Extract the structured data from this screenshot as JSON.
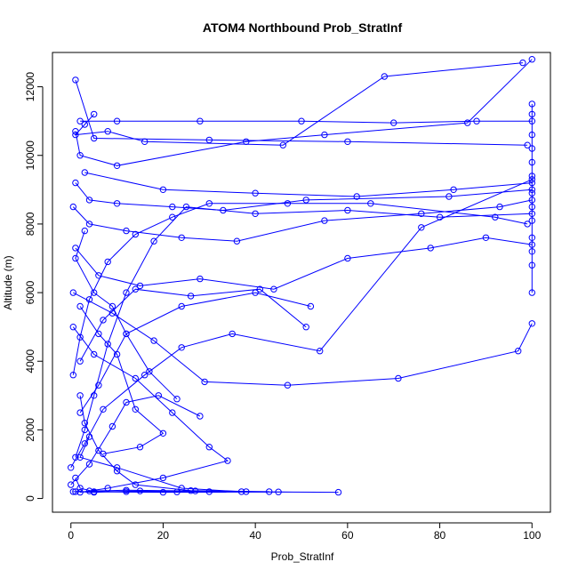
{
  "chart_data": {
    "type": "line",
    "title": "ATOM4 Northbound Prob_StratInf",
    "xlabel": "Prob_StratInf",
    "ylabel": "Altitude (m)",
    "xlim": [
      -4,
      104
    ],
    "ylim": [
      -400,
      13000
    ],
    "x_ticks": [
      0,
      20,
      40,
      60,
      80,
      100
    ],
    "y_ticks": [
      0,
      2000,
      4000,
      6000,
      8000,
      10000,
      12000
    ],
    "series_color": "#0000FF",
    "markers": "open-circle",
    "grid": false,
    "legend": "none",
    "series": [
      {
        "segments": [
          [
            [
              0.5,
              200
            ],
            [
              20,
              180
            ],
            [
              45,
              190
            ],
            [
              58,
              180
            ],
            [
              30,
              200
            ],
            [
              15,
              220
            ],
            [
              5,
              180
            ],
            [
              1,
              200
            ]
          ],
          [
            [
              1,
              1200
            ],
            [
              3,
              2000
            ],
            [
              5,
              3000
            ],
            [
              8,
              4500
            ],
            [
              12,
              6000
            ],
            [
              18,
              7500
            ],
            [
              25,
              8500
            ],
            [
              40,
              8300
            ],
            [
              60,
              8400
            ],
            [
              80,
              8200
            ],
            [
              100,
              8300
            ]
          ],
          [
            [
              2,
              11000
            ],
            [
              10,
              11000
            ],
            [
              28,
              11000
            ],
            [
              50,
              11000
            ],
            [
              70,
              10950
            ],
            [
              88,
              11000
            ],
            [
              100,
              11000
            ]
          ],
          [
            [
              1,
              12200
            ],
            [
              5,
              10500
            ],
            [
              30,
              10450
            ],
            [
              60,
              10400
            ],
            [
              99,
              10300
            ]
          ],
          [
            [
              3,
              9500
            ],
            [
              20,
              9000
            ],
            [
              40,
              8900
            ],
            [
              62,
              8800
            ],
            [
              83,
              9000
            ],
            [
              100,
              9200
            ]
          ],
          [
            [
              0.5,
              5000
            ],
            [
              5,
              4200
            ],
            [
              14,
              3500
            ],
            [
              22,
              2500
            ],
            [
              30,
              1500
            ],
            [
              34,
              1100
            ],
            [
              20,
              600
            ],
            [
              8,
              300
            ],
            [
              2,
              180
            ]
          ],
          [
            [
              2,
              2500
            ],
            [
              6,
              3300
            ],
            [
              12,
              4800
            ],
            [
              24,
              5600
            ],
            [
              40,
              6000
            ],
            [
              52,
              5600
            ]
          ],
          [
            [
              1,
              7300
            ],
            [
              6,
              6500
            ],
            [
              15,
              6200
            ],
            [
              28,
              6400
            ],
            [
              44,
              6100
            ],
            [
              60,
              7000
            ],
            [
              78,
              7300
            ],
            [
              90,
              7600
            ],
            [
              100,
              7400
            ]
          ],
          [
            [
              4,
              1800
            ],
            [
              2,
              1200
            ],
            [
              10,
              900
            ],
            [
              24,
              300
            ],
            [
              37,
              200
            ]
          ],
          [
            [
              0.5,
              6000
            ],
            [
              9,
              5400
            ],
            [
              18,
              4600
            ],
            [
              29,
              3400
            ],
            [
              47,
              3300
            ],
            [
              71,
              3500
            ],
            [
              97,
              4300
            ],
            [
              100,
              5100
            ]
          ],
          [
            [
              1,
              10700
            ],
            [
              2,
              10000
            ],
            [
              10,
              9700
            ],
            [
              38,
              10400
            ],
            [
              55,
              10600
            ],
            [
              86,
              10950
            ],
            [
              100,
              12800
            ]
          ],
          [
            [
              2,
              4000
            ],
            [
              7,
              5200
            ],
            [
              14,
              6100
            ],
            [
              26,
              5900
            ],
            [
              41,
              6100
            ],
            [
              51,
              5000
            ]
          ],
          [
            [
              0.5,
              8500
            ],
            [
              4,
              8000
            ],
            [
              12,
              7800
            ],
            [
              24,
              7600
            ],
            [
              36,
              7500
            ],
            [
              55,
              8100
            ],
            [
              76,
              8300
            ],
            [
              93,
              8500
            ],
            [
              100,
              8700
            ]
          ],
          [
            [
              0,
              900
            ],
            [
              3,
              1600
            ],
            [
              7,
              2600
            ],
            [
              16,
              3600
            ],
            [
              24,
              4400
            ],
            [
              35,
              4800
            ],
            [
              54,
              4300
            ],
            [
              76,
              7900
            ],
            [
              100,
              9300
            ]
          ],
          [
            [
              1,
              9200
            ],
            [
              4,
              8700
            ],
            [
              10,
              8600
            ],
            [
              22,
              8500
            ],
            [
              33,
              8400
            ],
            [
              51,
              8700
            ],
            [
              82,
              8800
            ],
            [
              100,
              9000
            ]
          ],
          [
            [
              2,
              3000
            ],
            [
              3,
              2200
            ],
            [
              6,
              1400
            ],
            [
              10,
              800
            ],
            [
              14,
              400
            ],
            [
              26,
              230
            ],
            [
              43,
              200
            ]
          ],
          [
            [
              0,
              400
            ],
            [
              4,
              1000
            ],
            [
              9,
              2100
            ],
            [
              12,
              2800
            ],
            [
              19,
              3000
            ],
            [
              28,
              2400
            ]
          ],
          [
            [
              3,
              7800
            ],
            [
              1,
              7000
            ],
            [
              5,
              6000
            ],
            [
              9,
              5600
            ],
            [
              12,
              4800
            ],
            [
              17,
              3700
            ],
            [
              23,
              2900
            ]
          ],
          [
            [
              100,
              6000
            ],
            [
              100,
              6800
            ],
            [
              100,
              7200
            ],
            [
              100,
              7600
            ],
            [
              100,
              8100
            ],
            [
              100,
              8500
            ],
            [
              100,
              8900
            ],
            [
              100,
              9400
            ],
            [
              100,
              9800
            ],
            [
              100,
              10200
            ],
            [
              100,
              10600
            ],
            [
              100,
              11200
            ],
            [
              100,
              11500
            ]
          ],
          [
            [
              0.5,
              3600
            ],
            [
              2,
              4700
            ],
            [
              4,
              5800
            ],
            [
              8,
              6900
            ],
            [
              14,
              7700
            ],
            [
              22,
              8200
            ],
            [
              30,
              8600
            ],
            [
              47,
              8600
            ],
            [
              65,
              8600
            ],
            [
              92,
              8200
            ],
            [
              99,
              8000
            ]
          ],
          [
            [
              1,
              600
            ],
            [
              2,
              300
            ],
            [
              5,
              200
            ],
            [
              12,
              200
            ],
            [
              23,
              190
            ],
            [
              38,
              200
            ],
            [
              27,
              220
            ],
            [
              12,
              240
            ],
            [
              4,
              220
            ]
          ],
          [
            [
              5,
              11200
            ],
            [
              3,
              10900
            ],
            [
              1,
              10600
            ],
            [
              8,
              10700
            ],
            [
              16,
              10400
            ],
            [
              46,
              10300
            ],
            [
              68,
              12300
            ],
            [
              98,
              12700
            ]
          ],
          [
            [
              2,
              5600
            ],
            [
              6,
              4800
            ],
            [
              10,
              4200
            ],
            [
              14,
              2600
            ],
            [
              20,
              1900
            ],
            [
              15,
              1500
            ],
            [
              7,
              1300
            ]
          ]
        ]
      }
    ]
  }
}
